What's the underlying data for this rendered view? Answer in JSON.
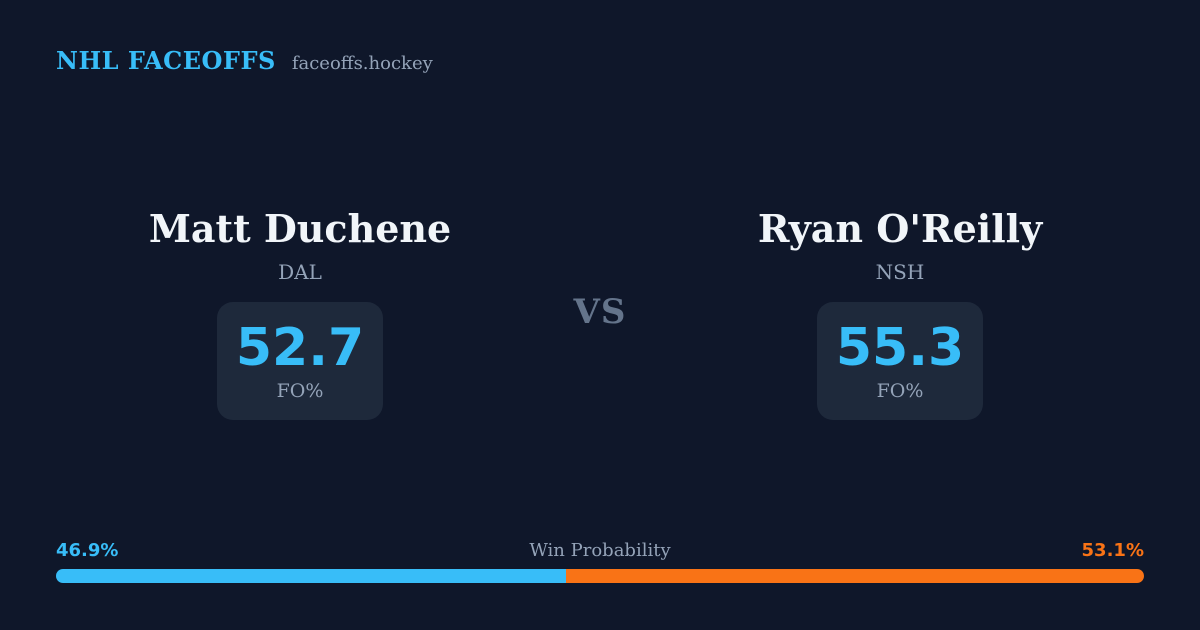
{
  "header": {
    "title": "NHL FACEOFFS",
    "domain": "faceoffs.hockey"
  },
  "versus": "VS",
  "players": {
    "left": {
      "name": "Matt Duchene",
      "team": "DAL",
      "stat_value": "52.7",
      "stat_label": "FO%"
    },
    "right": {
      "name": "Ryan O'Reilly",
      "team": "NSH",
      "stat_value": "55.3",
      "stat_label": "FO%"
    }
  },
  "win_probability": {
    "label": "Win Probability",
    "left_pct": "46.9%",
    "right_pct": "53.1%",
    "left_value": 46.9,
    "right_value": 53.1
  },
  "colors": {
    "background": "#0f172a",
    "panel": "#1e293b",
    "accent_blue": "#38bdf8",
    "accent_orange": "#f97316",
    "muted_text": "#94a3b8",
    "versus_text": "#64748b",
    "name_text": "#f1f5f9"
  }
}
